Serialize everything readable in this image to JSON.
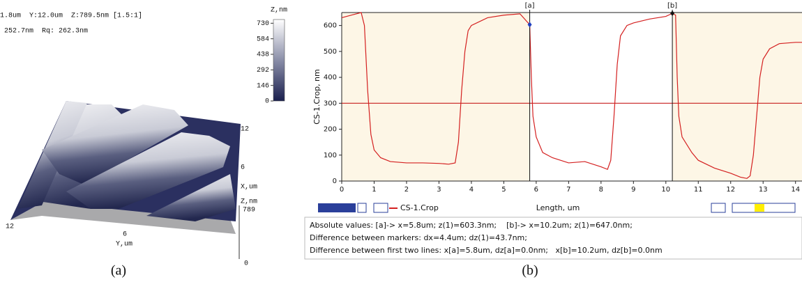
{
  "panel_a": {
    "header_lines": [
      "1.8um  Y:12.0um  Z:789.5nm [1.5:1]",
      "252.7nm  Rq: 262.3nm"
    ],
    "colorbar": {
      "title": "Z,nm",
      "zlim": [
        0,
        765
      ],
      "ticks": [
        730,
        584,
        438,
        292,
        146,
        0
      ]
    },
    "axis_labels": {
      "x_max": "12",
      "x_mid": "6",
      "x_title": "X,um",
      "z_title": "Z,nm",
      "z_max": "789",
      "z_min": "0",
      "y_max": "12",
      "y_mid": "6",
      "y_title": "Y,um"
    },
    "caption": "(a)"
  },
  "chart_data": {
    "type": "line",
    "x_label": "Length, um",
    "y_label": "CS-1.Crop, nm",
    "x": [
      0,
      0.3,
      0.6,
      0.7,
      0.8,
      0.9,
      1.0,
      1.2,
      1.5,
      2.0,
      2.5,
      3.0,
      3.3,
      3.5,
      3.6,
      3.7,
      3.8,
      3.9,
      4.0,
      4.5,
      5.0,
      5.5,
      5.8,
      5.85,
      5.9,
      6.0,
      6.2,
      6.5,
      7.0,
      7.5,
      8.0,
      8.2,
      8.3,
      8.4,
      8.5,
      8.6,
      8.8,
      9.0,
      9.5,
      10.0,
      10.2,
      10.3,
      10.35,
      10.4,
      10.5,
      10.8,
      11.0,
      11.5,
      12.0,
      12.3,
      12.5,
      12.6,
      12.7,
      12.8,
      12.9,
      13.0,
      13.2,
      13.5,
      14.0,
      14.2
    ],
    "series": [
      {
        "name": "CS-1.Crop",
        "color": "#d42020",
        "values": [
          630,
          640,
          650,
          600,
          350,
          180,
          120,
          90,
          75,
          70,
          70,
          68,
          65,
          70,
          150,
          350,
          500,
          580,
          600,
          630,
          640,
          645,
          603,
          400,
          250,
          170,
          110,
          90,
          70,
          75,
          55,
          45,
          80,
          250,
          450,
          560,
          600,
          610,
          625,
          635,
          647,
          640,
          400,
          250,
          170,
          110,
          80,
          50,
          30,
          15,
          10,
          20,
          100,
          250,
          400,
          470,
          510,
          530,
          535,
          535
        ]
      }
    ],
    "xlim": [
      0,
      14.2
    ],
    "ylim": [
      0,
      650
    ],
    "xticks": [
      0,
      1,
      2,
      3,
      4,
      5,
      6,
      7,
      8,
      9,
      10,
      11,
      12,
      13,
      14
    ],
    "yticks": [
      0,
      100,
      200,
      300,
      400,
      500,
      600
    ],
    "reference_line": {
      "value": 300,
      "color": "#c00000"
    },
    "markers": [
      {
        "label": "[a]",
        "x": 5.8,
        "y": 603.3,
        "color": "#1f3fbf"
      },
      {
        "label": "[b]",
        "x": 10.2,
        "y": 647.0,
        "color": "#111111"
      }
    ],
    "background": "#fdf6e6"
  },
  "status_lines": [
    "Absolute values: [a]-> x=5.8um; z(1)=603.3nm;    [b]-> x=10.2um; z(1)=647.0nm;",
    "Difference between markers: dx=4.4um; dz(1)=43.7nm;",
    "Difference between first two lines: x[a]=5.8um, dz[a]=0.0nm;   x[b]=10.2um, dz[b]=0.0nm"
  ],
  "caption_b": "(b)"
}
